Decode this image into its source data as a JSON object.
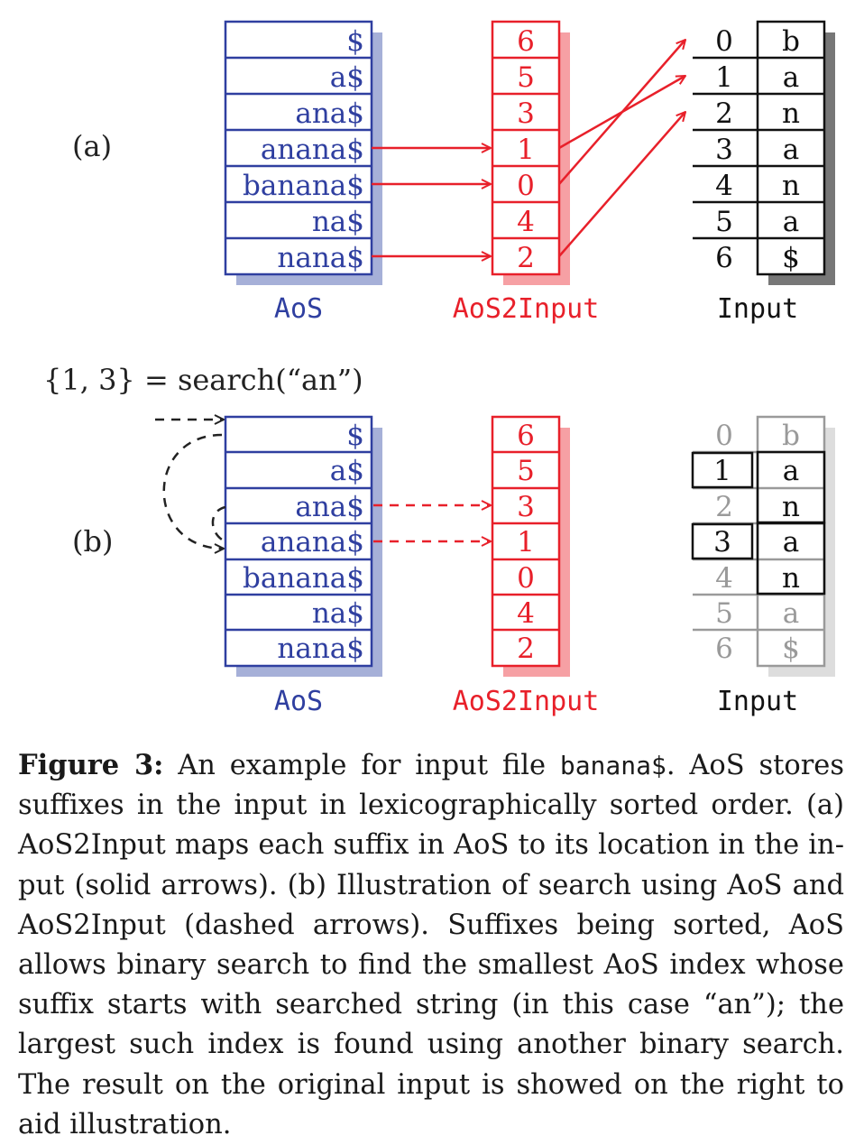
{
  "panel_a": {
    "label": "(a)",
    "aos": [
      "$",
      "a$",
      "ana$",
      "anana$",
      "banana$",
      "na$",
      "nana$"
    ],
    "aos2input": [
      "6",
      "5",
      "3",
      "1",
      "0",
      "4",
      "2"
    ],
    "input_index": [
      "0",
      "1",
      "2",
      "3",
      "4",
      "5",
      "6"
    ],
    "input_chars": [
      "b",
      "a",
      "n",
      "a",
      "n",
      "a",
      "$"
    ],
    "aos_title": "AoS",
    "aos2input_title": "AoS2Input",
    "input_title": "Input"
  },
  "search_label": "{1, 3} = search(“an”)",
  "panel_b": {
    "label": "(b)",
    "aos": [
      "$",
      "a$",
      "ana$",
      "anana$",
      "banana$",
      "na$",
      "nana$"
    ],
    "aos2input": [
      "6",
      "5",
      "3",
      "1",
      "0",
      "4",
      "2"
    ],
    "input_index": [
      "0",
      "1",
      "2",
      "3",
      "4",
      "5",
      "6"
    ],
    "input_chars": [
      "b",
      "a",
      "n",
      "a",
      "n",
      "a",
      "$"
    ],
    "aos_title": "AoS",
    "aos2input_title": "AoS2Input",
    "input_title": "Input"
  },
  "colors": {
    "aos": "#2f3fa0",
    "aos_shadow": "#a6b0d8",
    "aos2input": "#e8202a",
    "aos2input_shadow": "#f6a0a4",
    "input": "#111111",
    "input_shadow": "#777777",
    "faded": "#9a9a9a",
    "faded_shadow": "#dddddd"
  },
  "caption": {
    "label": "Figure 3:",
    "text_1": "An example for input file",
    "code": "banana$",
    "text_2": ". AoS stores suffixes in the input in lexicographically sorted order. (a) AoS2Input maps each suffix in AoS to its location in the in­put (solid arrows). (b) Illustration of search using AoS and AoS2Input (dashed arrows). Suffixes being sorted, AoS allows binary search to find the smallest AoS index whose suffix starts with searched string (in this case “an”); the largest such index is found using another binary search. The result on the origi­nal input is showed on the right to aid illustration."
  }
}
